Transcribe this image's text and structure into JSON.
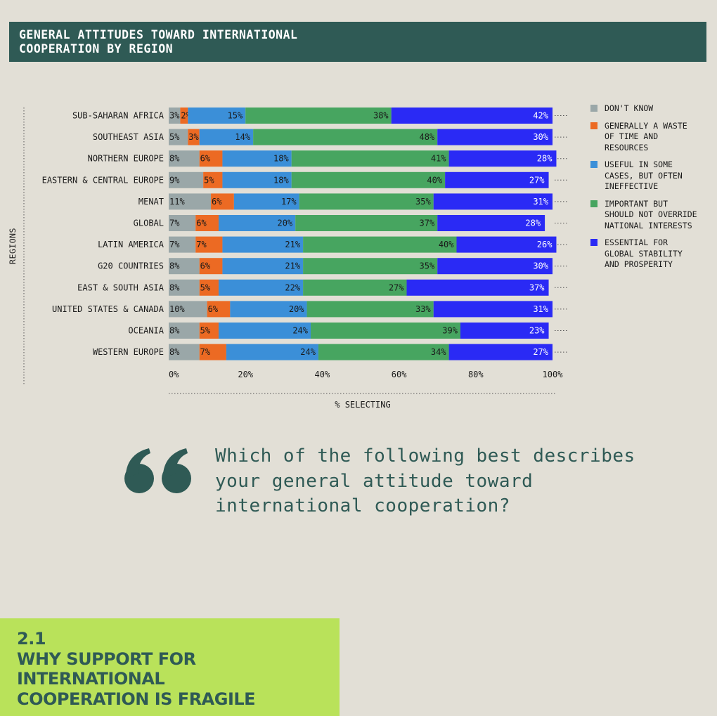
{
  "header": {
    "title_line1": "GENERAL ATTITUDES TOWARD INTERNATIONAL",
    "title_line2": "COOPERATION BY REGION"
  },
  "chart_data": {
    "type": "bar",
    "orientation": "horizontal",
    "stacked": true,
    "title": "GENERAL ATTITUDES TOWARD INTERNATIONAL COOPERATION BY REGION",
    "xlabel": "% SELECTING",
    "ylabel": "REGIONS",
    "xlim": [
      0,
      100
    ],
    "xticks": [
      "0%",
      "20%",
      "40%",
      "60%",
      "80%",
      "100%"
    ],
    "categories": [
      "SUB-SAHARAN AFRICA",
      "SOUTHEAST ASIA",
      "NORTHERN EUROPE",
      "EASTERN & CENTRAL EUROPE",
      "MENAT",
      "GLOBAL",
      "LATIN AMERICA",
      "G20 COUNTRIES",
      "EAST & SOUTH ASIA",
      "UNITED STATES & CANADA",
      "OCEANIA",
      "WESTERN EUROPE"
    ],
    "series": [
      {
        "name": "DON'T KNOW",
        "color": "#9aa7a8",
        "values": [
          3,
          5,
          8,
          9,
          11,
          7,
          7,
          8,
          8,
          10,
          8,
          8
        ]
      },
      {
        "name": "GENERALLY A WASTE OF TIME AND RESOURCES",
        "color": "#ec6a23",
        "values": [
          2,
          3,
          6,
          5,
          6,
          6,
          7,
          6,
          5,
          6,
          5,
          7
        ]
      },
      {
        "name": "USEFUL IN SOME CASES, BUT OFTEN INEFFECTIVE",
        "color": "#3b8fd8",
        "values": [
          15,
          14,
          18,
          18,
          17,
          20,
          21,
          21,
          22,
          20,
          24,
          24
        ]
      },
      {
        "name": "IMPORTANT BUT SHOULD NOT OVERRIDE NATIONAL INTERESTS",
        "color": "#47a560",
        "values": [
          38,
          48,
          41,
          40,
          35,
          37,
          40,
          35,
          27,
          33,
          39,
          34
        ]
      },
      {
        "name": "ESSENTIAL FOR GLOBAL STABILITY AND PROSPERITY",
        "color": "#2a2af5",
        "values": [
          42,
          30,
          28,
          27,
          31,
          28,
          26,
          30,
          37,
          31,
          23,
          27
        ]
      }
    ]
  },
  "legend": [
    {
      "lines": [
        "DON'T KNOW"
      ],
      "color": "#9aa7a8"
    },
    {
      "lines": [
        "GENERALLY A WASTE",
        "OF TIME AND",
        "RESOURCES"
      ],
      "color": "#ec6a23"
    },
    {
      "lines": [
        "USEFUL IN SOME",
        "CASES, BUT OFTEN",
        "INEFFECTIVE"
      ],
      "color": "#3b8fd8"
    },
    {
      "lines": [
        "IMPORTANT BUT",
        "SHOULD NOT OVERRIDE",
        "NATIONAL INTERESTS"
      ],
      "color": "#47a560"
    },
    {
      "lines": [
        "ESSENTIAL FOR",
        "GLOBAL STABILITY",
        "AND PROSPERITY"
      ],
      "color": "#2a2af5"
    }
  ],
  "question": {
    "line1": "Which of the following best describes",
    "line2": "your general attitude toward",
    "line3": "international cooperation?"
  },
  "section": {
    "number": "2.1",
    "line1": "WHY SUPPORT FOR",
    "line2": "INTERNATIONAL",
    "line3": "COOPERATION IS FRAGILE"
  },
  "colors": {
    "teal": "#2f5a55",
    "lime": "#b9e25a",
    "background": "#e2dfd6"
  }
}
